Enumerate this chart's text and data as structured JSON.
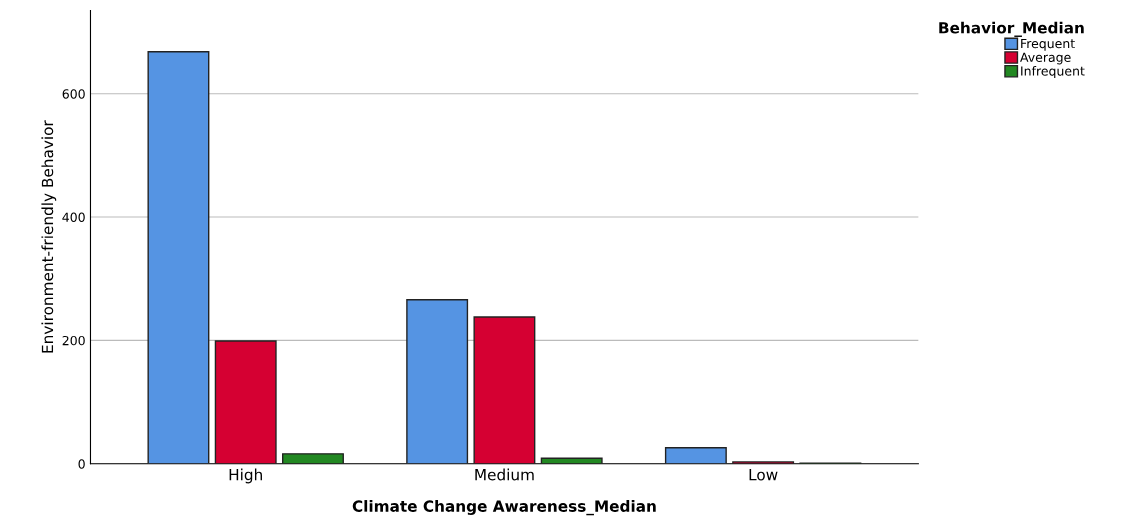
{
  "chart_data": {
    "type": "bar",
    "xlabel": "Climate Change Awareness_Median",
    "ylabel": "Environment-friendly Behavior",
    "legend_title": "Behavior_Median",
    "categories": [
      "High",
      "Medium",
      "Low"
    ],
    "series": [
      {
        "name": "Frequent",
        "color": "#5594e3",
        "values": [
          668,
          266,
          26
        ]
      },
      {
        "name": "Average",
        "color": "#d50032",
        "values": [
          199,
          238,
          3
        ]
      },
      {
        "name": "Infrequent",
        "color": "#228822",
        "values": [
          16,
          9,
          1
        ]
      }
    ],
    "ylim": [
      0,
      735
    ],
    "yticks": [
      0,
      200,
      400,
      600
    ],
    "grid": "y",
    "legend": "top right"
  }
}
